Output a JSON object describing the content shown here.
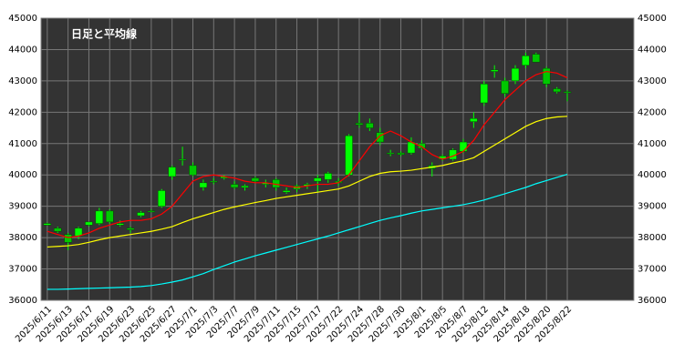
{
  "chart_data": {
    "type": "candlestick",
    "title": "日足と平均線",
    "categories": [
      "2025/6/11",
      null,
      "2025/6/13",
      null,
      "2025/6/17",
      null,
      "2025/6/19",
      null,
      "2025/6/23",
      null,
      "2025/6/25",
      null,
      "2025/6/27",
      null,
      "2025/7/1",
      null,
      "2025/7/3",
      null,
      "2025/7/7",
      null,
      "2025/7/9",
      null,
      "2025/7/11",
      null,
      "2025/7/15",
      null,
      "2025/7/17",
      null,
      "2025/7/22",
      null,
      "2025/7/24",
      null,
      "2025/7/28",
      null,
      "2025/7/30",
      null,
      "2025/8/1",
      null,
      "2025/8/5",
      null,
      "2025/8/7",
      null,
      "2025/8/12",
      null,
      "2025/8/14",
      null,
      "2025/8/18",
      null,
      "2025/8/20",
      null,
      "2025/8/22"
    ],
    "open": [
      38400,
      38300,
      38100,
      38050,
      38400,
      38450,
      38850,
      38400,
      38300,
      38700,
      38850,
      39000,
      39950,
      40500,
      40300,
      39600,
      39800,
      39900,
      39700,
      39600,
      39900,
      39700,
      39850,
      39450,
      39550,
      39650,
      39800,
      39850,
      39800,
      40000,
      41650,
      41650,
      41350,
      40700,
      40700,
      40700,
      41000,
      40300,
      40500,
      40500,
      40750,
      41700,
      42300,
      43300,
      43000,
      43000,
      43500,
      43850,
      43400,
      42750,
      42650
    ],
    "high": [
      38480,
      38350,
      38150,
      38350,
      38500,
      38950,
      38900,
      38550,
      38350,
      38850,
      38900,
      39550,
      40300,
      40900,
      40400,
      39850,
      39900,
      40000,
      39800,
      39700,
      39950,
      39850,
      39900,
      39600,
      39700,
      39750,
      40000,
      40100,
      39900,
      41300,
      42000,
      41800,
      41500,
      40800,
      40750,
      41200,
      41100,
      40400,
      40650,
      40850,
      41150,
      42000,
      43000,
      43500,
      43100,
      43500,
      43900,
      43900,
      43450,
      42800,
      42700
    ],
    "low": [
      38380,
      38150,
      37600,
      37950,
      38350,
      38400,
      38450,
      38350,
      38150,
      38650,
      38800,
      38950,
      39850,
      40300,
      39950,
      39500,
      39700,
      39850,
      39550,
      39500,
      39750,
      39600,
      39500,
      39400,
      39450,
      39550,
      39450,
      39750,
      39650,
      39950,
      41500,
      41400,
      40950,
      40600,
      40600,
      40650,
      40800,
      39950,
      40450,
      40450,
      40700,
      41500,
      42200,
      43100,
      42500,
      42900,
      43400,
      43600,
      42800,
      42600,
      42350
    ],
    "close": [
      38450,
      38200,
      37850,
      38300,
      38500,
      38850,
      38500,
      38450,
      38250,
      38800,
      38850,
      39500,
      40250,
      40500,
      40000,
      39750,
      39800,
      39950,
      39600,
      39650,
      39800,
      39750,
      39600,
      39500,
      39650,
      39700,
      39900,
      40050,
      39750,
      41250,
      41600,
      41500,
      41050,
      40700,
      40650,
      41050,
      40850,
      40200,
      40600,
      40800,
      41050,
      41800,
      42900,
      43350,
      42600,
      43400,
      43800,
      43600,
      42900,
      42650,
      42650
    ],
    "color": "#00ff00",
    "lines": [
      {
        "color": "#ff0000",
        "values": [
          38200,
          38100,
          38000,
          38050,
          38150,
          38300,
          38400,
          38500,
          38550,
          38550,
          38600,
          38750,
          39000,
          39400,
          39800,
          39950,
          40000,
          39950,
          39900,
          39800,
          39750,
          39750,
          39700,
          39650,
          39600,
          39650,
          39700,
          39700,
          39750,
          40000,
          40450,
          40900,
          41250,
          41400,
          41250,
          41050,
          40900,
          40650,
          40500,
          40600,
          40750,
          41100,
          41600,
          42000,
          42400,
          42700,
          43000,
          43200,
          43300,
          43250,
          43100
        ]
      },
      {
        "color": "#ffff00",
        "values": [
          37700,
          37720,
          37740,
          37780,
          37850,
          37930,
          38000,
          38050,
          38100,
          38150,
          38200,
          38270,
          38350,
          38480,
          38600,
          38700,
          38800,
          38900,
          38980,
          39050,
          39120,
          39180,
          39250,
          39300,
          39350,
          39400,
          39450,
          39500,
          39550,
          39650,
          39800,
          39950,
          40050,
          40100,
          40120,
          40150,
          40200,
          40250,
          40300,
          40380,
          40450,
          40550,
          40750,
          40950,
          41150,
          41350,
          41550,
          41700,
          41800,
          41850,
          41870
        ]
      },
      {
        "color": "#00ffff",
        "values": [
          36350,
          36350,
          36360,
          36370,
          36380,
          36390,
          36400,
          36410,
          36420,
          36440,
          36470,
          36520,
          36580,
          36650,
          36750,
          36850,
          36980,
          37100,
          37220,
          37320,
          37420,
          37510,
          37600,
          37690,
          37780,
          37870,
          37960,
          38050,
          38150,
          38250,
          38350,
          38450,
          38550,
          38630,
          38700,
          38780,
          38850,
          38900,
          38950,
          39000,
          39050,
          39120,
          39200,
          39300,
          39400,
          39500,
          39600,
          39720,
          39820,
          39920,
          40020
        ]
      }
    ],
    "ylim": [
      36000,
      45000
    ],
    "yticks": [
      36000,
      37000,
      38000,
      39000,
      40000,
      41000,
      42000,
      43000,
      44000,
      45000
    ],
    "grid": true
  }
}
